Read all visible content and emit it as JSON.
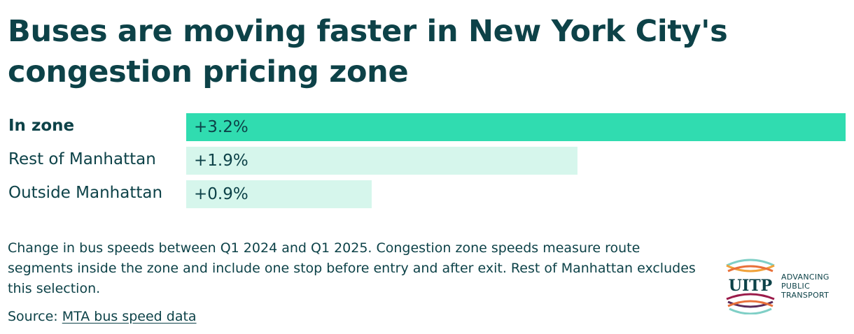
{
  "title": "Buses are moving faster in New York City's congestion pricing zone",
  "chart_data": {
    "type": "bar",
    "orientation": "horizontal",
    "categories": [
      "In zone",
      "Rest of Manhattan",
      "Outside Manhattan"
    ],
    "values": [
      3.2,
      1.9,
      0.9
    ],
    "value_labels": [
      "+3.2%",
      "+1.9%",
      "+0.9%"
    ],
    "unit": "%",
    "xlim": [
      0,
      3.2
    ],
    "highlight": "In zone",
    "colors": {
      "highlight": "#30dcb0",
      "default": "#d6f6ec"
    }
  },
  "note": "Change in bus speeds between Q1 2024 and Q1 2025. Congestion zone speeds measure route segments inside the zone and include one stop before entry and after exit. Rest of Manhattan excludes this selection.",
  "source": {
    "prefix": "Source:",
    "link_text": "MTA bus speed data"
  },
  "logo": {
    "wordmark": "UITP",
    "tagline_1": "ADVANCING",
    "tagline_2": "PUBLIC",
    "tagline_3": "TRANSPORT"
  },
  "colors": {
    "text": "#0d4248"
  }
}
